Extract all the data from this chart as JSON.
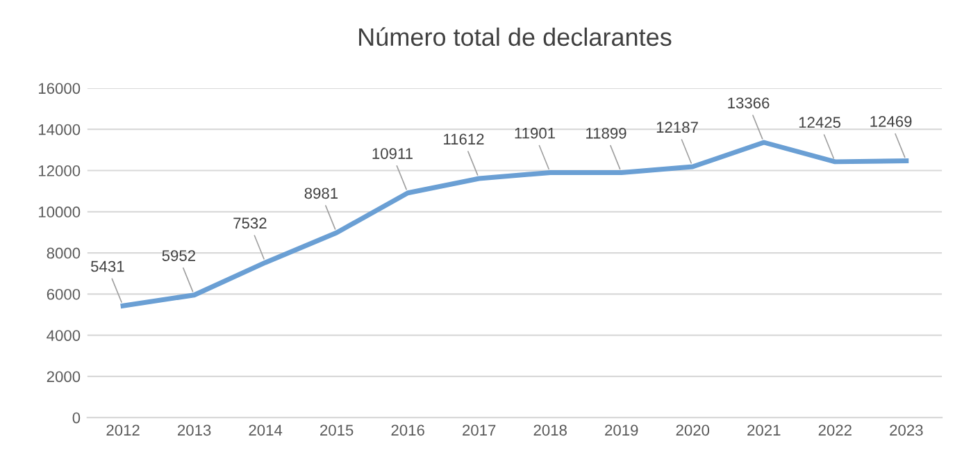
{
  "chart_data": {
    "type": "line",
    "title": "Número total de declarantes",
    "categories": [
      "2012",
      "2013",
      "2014",
      "2015",
      "2016",
      "2017",
      "2018",
      "2019",
      "2020",
      "2021",
      "2022",
      "2023"
    ],
    "series": [
      {
        "color": "#6a9fd4",
        "values": [
          5431,
          5952,
          7532,
          8981,
          10911,
          11612,
          11901,
          11899,
          12187,
          13366,
          12425,
          12469
        ]
      }
    ],
    "ylim": [
      0,
      16000
    ],
    "yticks": [
      0,
      2000,
      4000,
      6000,
      8000,
      10000,
      12000,
      14000,
      16000
    ],
    "grid": "y",
    "data_labels": true,
    "marker": "none",
    "line_style": "solid"
  }
}
